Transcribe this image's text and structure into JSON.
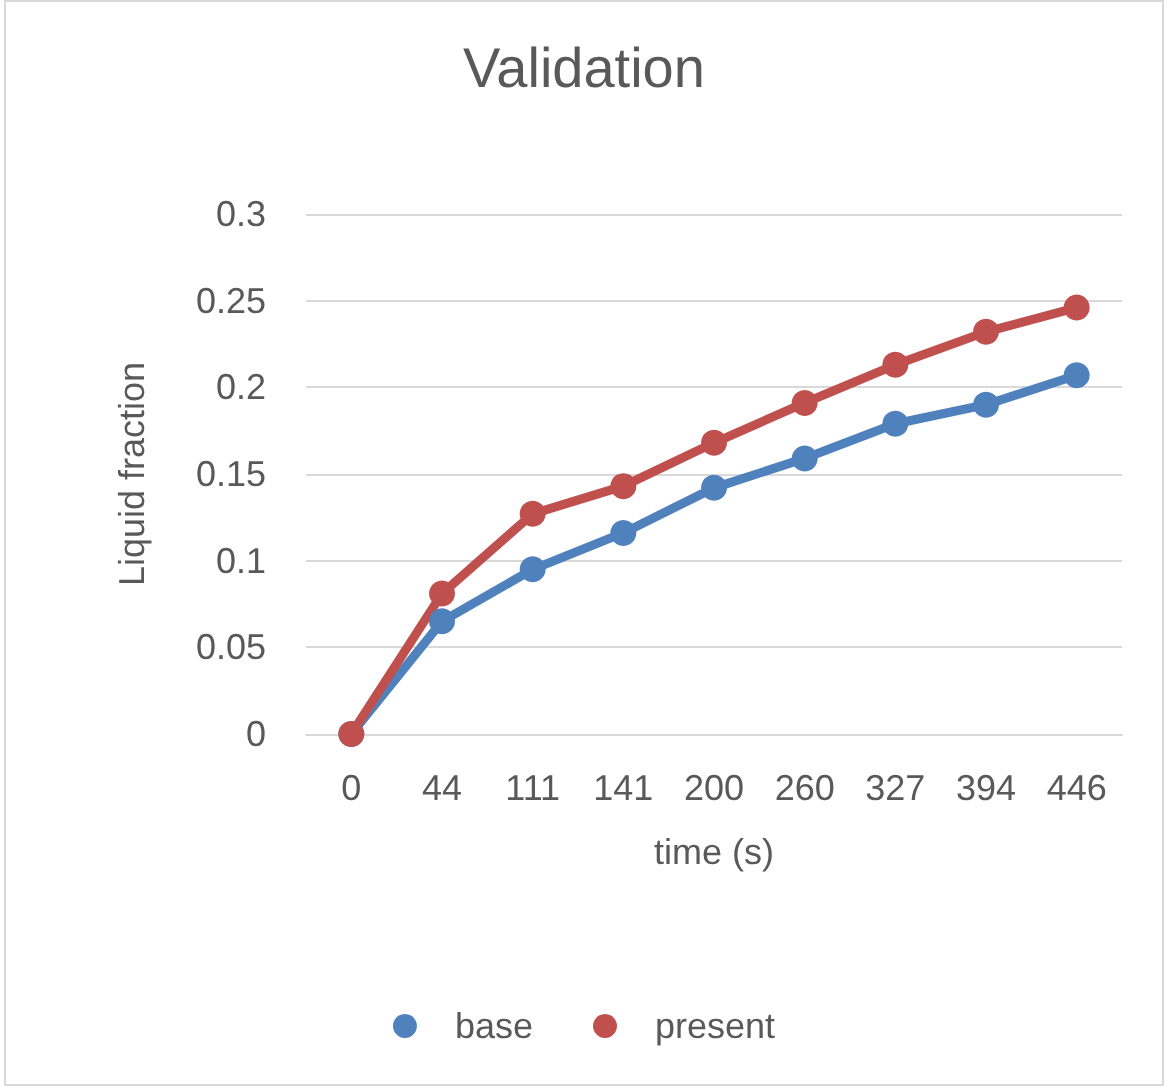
{
  "chart_data": {
    "type": "line",
    "title": "Validation",
    "xlabel": "time (s)",
    "ylabel": "Liquid fraction",
    "categories": [
      "0",
      "44",
      "111",
      "141",
      "200",
      "260",
      "327",
      "394",
      "446"
    ],
    "series": [
      {
        "name": "base",
        "color": "#4f81bd",
        "values": [
          0,
          0.065,
          0.095,
          0.116,
          0.142,
          0.159,
          0.179,
          0.19,
          0.207
        ]
      },
      {
        "name": "present",
        "color": "#c0504d",
        "values": [
          0,
          0.081,
          0.127,
          0.143,
          0.168,
          0.191,
          0.213,
          0.232,
          0.246
        ]
      }
    ],
    "ylim": [
      0,
      0.3
    ],
    "yticks": [
      0,
      0.05,
      0.1,
      0.15,
      0.2,
      0.25,
      0.3
    ],
    "grid": "y",
    "legend": "bottom",
    "marker": "circle",
    "line_style": "solid"
  }
}
